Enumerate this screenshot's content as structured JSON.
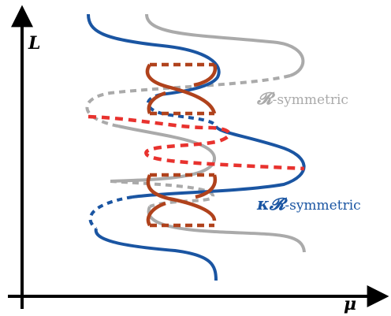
{
  "axes": {
    "y_label": "L",
    "x_label": "μ"
  },
  "labels": {
    "r_symbol": "𝓡",
    "r_text": "-symmetric",
    "kr_symbol": "κ𝓡",
    "kr_text": "-symmetric"
  },
  "colors": {
    "r_symmetric": "#aaaaaa",
    "kr_symmetric": "#1a55a2",
    "red_dashed": "#e8322e",
    "brown": "#b0421c",
    "axes": "#000000"
  },
  "legend_semantics": {
    "solid": "stable",
    "dashed": "unstable"
  }
}
